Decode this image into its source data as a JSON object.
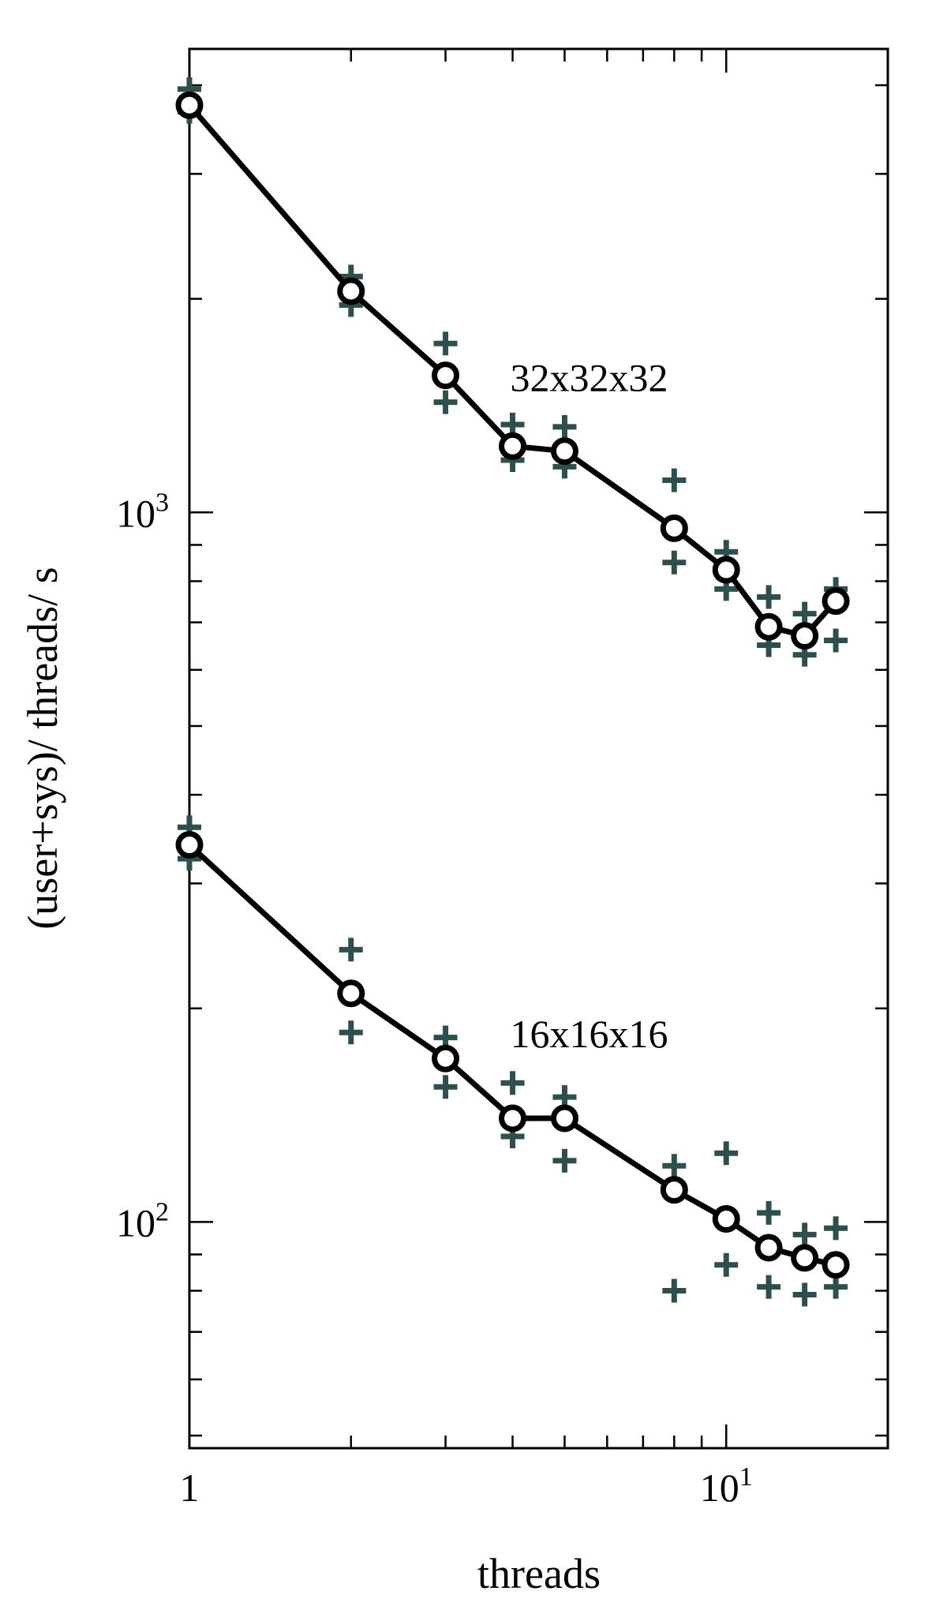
{
  "chart_data": {
    "type": "line",
    "xlabel": "threads",
    "ylabel": "(user+sys)/ threads/ s",
    "xscale": "log",
    "yscale": "log",
    "xlim": [
      1,
      20
    ],
    "ylim": [
      48,
      4500
    ],
    "x_ticks": [
      {
        "value": 1,
        "base": "1",
        "exp": ""
      },
      {
        "value": 10,
        "base": "10",
        "exp": "1"
      }
    ],
    "y_ticks": [
      {
        "value": 100,
        "base": "10",
        "exp": "2"
      },
      {
        "value": 1000,
        "base": "10",
        "exp": "3"
      }
    ],
    "grid": false,
    "legend": "none",
    "colors": {
      "line": "#000000",
      "marker_fill": "#ffffff",
      "cross": "#2f4f4f"
    },
    "series": [
      {
        "annotation": "32x32x32",
        "x": [
          1,
          2,
          3,
          4,
          5,
          8,
          10,
          12,
          14,
          16
        ],
        "y": [
          3750,
          2050,
          1560,
          1240,
          1220,
          950,
          830,
          690,
          670,
          750
        ],
        "y_high": [
          3950,
          2150,
          1730,
          1330,
          1320,
          1110,
          880,
          760,
          720,
          780
        ],
        "y_low": [
          3670,
          1960,
          1430,
          1185,
          1160,
          850,
          780,
          650,
          630,
          660
        ]
      },
      {
        "annotation": "16x16x16",
        "x": [
          1,
          2,
          3,
          4,
          5,
          8,
          10,
          12,
          14,
          16
        ],
        "y": [
          340,
          210,
          170,
          140,
          140,
          111,
          101,
          92,
          89,
          87
        ],
        "y_high": [
          360,
          242,
          182,
          157,
          150,
          120,
          125,
          103,
          96,
          98
        ],
        "y_low": [
          325,
          185,
          155,
          132,
          122,
          80,
          87,
          81,
          79,
          81
        ]
      }
    ]
  }
}
